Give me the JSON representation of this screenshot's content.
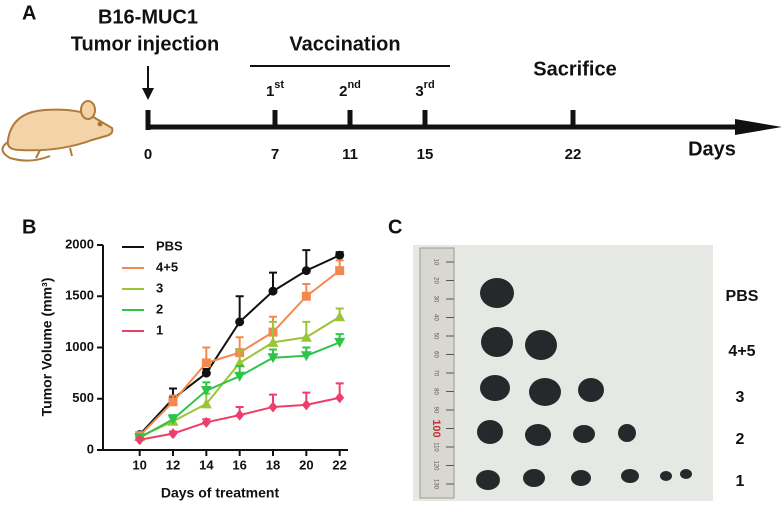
{
  "panel_a": {
    "letter": "A",
    "cell_line": "B16-MUC1",
    "injection": "Tumor injection",
    "vaccination": "Vaccination",
    "doses": [
      {
        "num": "1",
        "sup": "st"
      },
      {
        "num": "2",
        "sup": "nd"
      },
      {
        "num": "3",
        "sup": "rd"
      }
    ],
    "sacrifice": "Sacrifice",
    "days": [
      "0",
      "7",
      "11",
      "15",
      "22"
    ],
    "axis_label": "Days"
  },
  "chart_data": {
    "type": "line",
    "letter": "B",
    "xlabel": "Days of treatment",
    "ylabel": "Tumor Volume (mm³)",
    "x": [
      10,
      12,
      14,
      16,
      18,
      20,
      22
    ],
    "xlim": [
      7.8,
      22.5
    ],
    "xticks": [
      10,
      12,
      14,
      16,
      18,
      20,
      22
    ],
    "ylim": [
      0,
      2000
    ],
    "yticks": [
      0,
      500,
      1000,
      1500,
      2000
    ],
    "grid": false,
    "legend": "upper left",
    "series": [
      {
        "name": "PBS",
        "color": "#111111",
        "marker": "circle",
        "values": [
          150,
          500,
          750,
          1250,
          1550,
          1750,
          1900
        ],
        "error": [
          20,
          100,
          40,
          250,
          180,
          200,
          30
        ]
      },
      {
        "name": "4+5",
        "color": "#f4894f",
        "marker": "square",
        "values": [
          140,
          470,
          850,
          950,
          1150,
          1500,
          1750
        ],
        "error": [
          20,
          60,
          150,
          150,
          150,
          120,
          100
        ]
      },
      {
        "name": "3",
        "color": "#9cc43a",
        "marker": "triangle-up",
        "values": [
          130,
          280,
          450,
          850,
          1050,
          1100,
          1300
        ],
        "error": [
          20,
          50,
          100,
          120,
          200,
          150,
          80
        ]
      },
      {
        "name": "2",
        "color": "#2ec44a",
        "marker": "triangle-down",
        "values": [
          120,
          300,
          580,
          720,
          900,
          920,
          1050
        ],
        "error": [
          20,
          40,
          80,
          100,
          80,
          80,
          80
        ]
      },
      {
        "name": "1",
        "color": "#ec3f6b",
        "marker": "diamond",
        "values": [
          100,
          160,
          270,
          340,
          420,
          440,
          510
        ],
        "error": [
          15,
          20,
          30,
          80,
          120,
          120,
          140
        ]
      }
    ]
  },
  "panel_c": {
    "letter": "C",
    "groups": [
      "PBS",
      "4+5",
      "3",
      "2",
      "1"
    ],
    "ruler": [
      "10",
      "20",
      "30",
      "40",
      "50",
      "60",
      "70",
      "80",
      "90",
      "100",
      "110",
      "120",
      "130"
    ]
  }
}
